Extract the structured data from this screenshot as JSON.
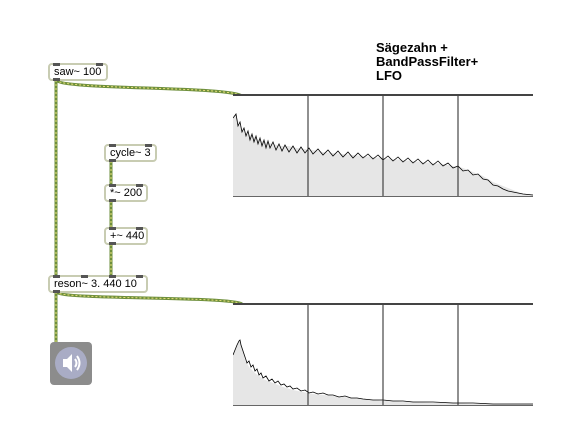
{
  "comment": {
    "line1": "Sägezahn +",
    "line2": "BandPassFilter+",
    "line3": "LFO"
  },
  "objects": {
    "saw": "saw~ 100",
    "cycle": "cycle~ 3",
    "mul": "*~ 200",
    "add": "+~ 440",
    "reson": "reson~ 3. 440 10"
  },
  "icons": {
    "speaker": "speaker-dac-icon"
  },
  "colors": {
    "object_border": "#c8ccb2",
    "signal_cord": "#6e8f3c",
    "signal_cord_stripe": "#e8e07a",
    "scope_fill": "#e6e6e6",
    "speaker_bg": "#8c8c8c",
    "speaker_circle": "#a9acc5"
  }
}
